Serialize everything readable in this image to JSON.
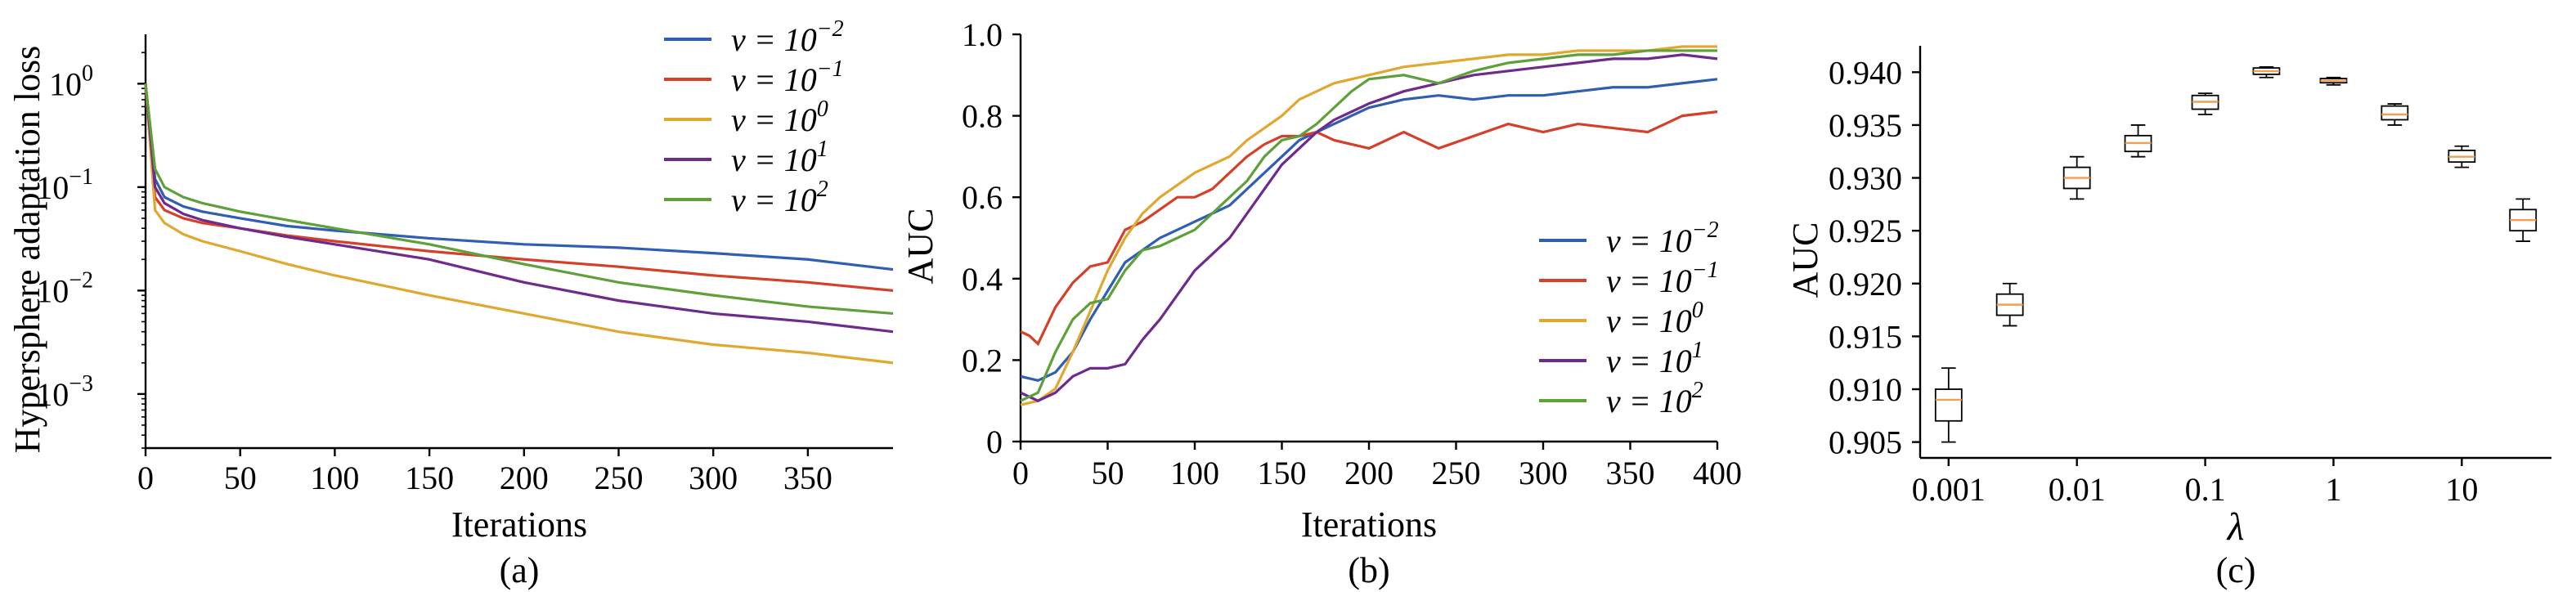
{
  "charts": [
    {
      "type": "line",
      "panel_label": "(a)",
      "xlabel": "Iterations",
      "ylabel": "Hypersphere adaptation loss",
      "yscale": "log",
      "xlim": [
        0,
        395
      ],
      "ylim": [
        0.0003,
        3
      ],
      "x_ticks": [
        0,
        50,
        100,
        150,
        200,
        250,
        300,
        350
      ],
      "x_tick_labels": [
        "0",
        "50",
        "100",
        "150",
        "200",
        "250",
        "300",
        "350"
      ],
      "y_ticks": [
        1,
        0.1,
        0.01,
        0.001
      ],
      "y_tick_base": "10",
      "y_tick_exponents": [
        "0",
        "−1",
        "−2",
        "−3"
      ],
      "legend_position": "top-right",
      "series": [
        {
          "name": "v = 10−2",
          "legend_base": "v = 10",
          "legend_exp": "−2",
          "color": "#2f5fb3",
          "x": [
            0,
            5,
            10,
            20,
            30,
            50,
            75,
            100,
            150,
            200,
            250,
            300,
            350,
            395
          ],
          "y": [
            1.0,
            0.12,
            0.08,
            0.065,
            0.058,
            0.05,
            0.042,
            0.038,
            0.032,
            0.028,
            0.026,
            0.023,
            0.02,
            0.016
          ]
        },
        {
          "name": "v = 10−1",
          "legend_base": "v = 10",
          "legend_exp": "−1",
          "color": "#d4402a",
          "x": [
            0,
            5,
            10,
            20,
            30,
            50,
            75,
            100,
            150,
            200,
            250,
            300,
            350,
            395
          ],
          "y": [
            1.0,
            0.08,
            0.06,
            0.05,
            0.045,
            0.04,
            0.034,
            0.03,
            0.024,
            0.02,
            0.017,
            0.014,
            0.012,
            0.01
          ]
        },
        {
          "name": "v = 100",
          "legend_base": "v = 10",
          "legend_exp": "0",
          "color": "#e0a82e",
          "x": [
            0,
            5,
            10,
            20,
            30,
            50,
            75,
            100,
            150,
            200,
            250,
            300,
            350,
            395
          ],
          "y": [
            1.0,
            0.06,
            0.045,
            0.035,
            0.03,
            0.024,
            0.018,
            0.014,
            0.009,
            0.006,
            0.004,
            0.003,
            0.0025,
            0.002
          ]
        },
        {
          "name": "v = 101",
          "legend_base": "v = 10",
          "legend_exp": "1",
          "color": "#6e2a8c",
          "x": [
            0,
            5,
            10,
            20,
            30,
            50,
            75,
            100,
            150,
            200,
            250,
            300,
            350,
            395
          ],
          "y": [
            1.0,
            0.1,
            0.07,
            0.055,
            0.048,
            0.04,
            0.033,
            0.028,
            0.02,
            0.012,
            0.008,
            0.006,
            0.005,
            0.004
          ]
        },
        {
          "name": "v = 102",
          "legend_base": "v = 10",
          "legend_exp": "2",
          "color": "#5fa03a",
          "x": [
            0,
            5,
            10,
            20,
            30,
            50,
            75,
            100,
            150,
            200,
            250,
            300,
            350,
            395
          ],
          "y": [
            1.0,
            0.15,
            0.1,
            0.08,
            0.07,
            0.058,
            0.048,
            0.04,
            0.028,
            0.018,
            0.012,
            0.009,
            0.007,
            0.006
          ]
        }
      ]
    },
    {
      "type": "line",
      "panel_label": "(b)",
      "xlabel": "Iterations",
      "ylabel": "AUC",
      "xlim": [
        0,
        400
      ],
      "ylim": [
        0,
        1.0
      ],
      "x_ticks": [
        0,
        50,
        100,
        150,
        200,
        250,
        300,
        350,
        400
      ],
      "x_tick_labels": [
        "0",
        "50",
        "100",
        "150",
        "200",
        "250",
        "300",
        "350",
        "400"
      ],
      "y_ticks": [
        0,
        0.2,
        0.4,
        0.6,
        0.8,
        1.0
      ],
      "y_tick_labels": [
        "0",
        "0.2",
        "0.4",
        "0.6",
        "0.8",
        "1.0"
      ],
      "legend_position": "bottom-right",
      "series": [
        {
          "name": "v = 10−2",
          "legend_base": "v = 10",
          "legend_exp": "−2",
          "color": "#2f5fb3",
          "x": [
            0,
            10,
            20,
            30,
            40,
            50,
            60,
            70,
            80,
            90,
            100,
            110,
            120,
            130,
            140,
            150,
            160,
            170,
            180,
            190,
            200,
            220,
            240,
            260,
            280,
            300,
            320,
            340,
            360,
            380,
            400
          ],
          "y": [
            0.16,
            0.15,
            0.17,
            0.22,
            0.3,
            0.37,
            0.44,
            0.47,
            0.5,
            0.52,
            0.54,
            0.56,
            0.58,
            0.62,
            0.66,
            0.7,
            0.74,
            0.76,
            0.78,
            0.8,
            0.82,
            0.84,
            0.85,
            0.84,
            0.85,
            0.85,
            0.86,
            0.87,
            0.87,
            0.88,
            0.89
          ]
        },
        {
          "name": "v = 10−1",
          "legend_base": "v = 10",
          "legend_exp": "−1",
          "color": "#d4402a",
          "x": [
            0,
            5,
            10,
            20,
            30,
            40,
            50,
            60,
            70,
            80,
            90,
            100,
            110,
            120,
            130,
            140,
            150,
            160,
            170,
            180,
            190,
            200,
            220,
            240,
            260,
            280,
            300,
            320,
            340,
            360,
            380,
            400
          ],
          "y": [
            0.27,
            0.26,
            0.24,
            0.33,
            0.39,
            0.43,
            0.44,
            0.52,
            0.54,
            0.57,
            0.6,
            0.6,
            0.62,
            0.66,
            0.7,
            0.73,
            0.75,
            0.75,
            0.76,
            0.74,
            0.73,
            0.72,
            0.76,
            0.72,
            0.75,
            0.78,
            0.76,
            0.78,
            0.77,
            0.76,
            0.8,
            0.81
          ]
        },
        {
          "name": "v = 100",
          "legend_base": "v = 10",
          "legend_exp": "0",
          "color": "#e0a82e",
          "x": [
            0,
            10,
            20,
            30,
            40,
            50,
            60,
            70,
            80,
            90,
            100,
            110,
            120,
            130,
            140,
            150,
            160,
            170,
            180,
            190,
            200,
            220,
            240,
            260,
            280,
            300,
            320,
            340,
            360,
            380,
            400
          ],
          "y": [
            0.09,
            0.1,
            0.13,
            0.22,
            0.32,
            0.42,
            0.5,
            0.56,
            0.6,
            0.63,
            0.66,
            0.68,
            0.7,
            0.74,
            0.77,
            0.8,
            0.84,
            0.86,
            0.88,
            0.89,
            0.9,
            0.92,
            0.93,
            0.94,
            0.95,
            0.95,
            0.96,
            0.96,
            0.96,
            0.97,
            0.97
          ]
        },
        {
          "name": "v = 101",
          "legend_base": "v = 10",
          "legend_exp": "1",
          "color": "#6e2a8c",
          "x": [
            0,
            10,
            20,
            30,
            40,
            50,
            60,
            70,
            80,
            90,
            100,
            110,
            120,
            130,
            140,
            150,
            160,
            170,
            180,
            190,
            200,
            220,
            240,
            260,
            280,
            300,
            320,
            340,
            360,
            380,
            400
          ],
          "y": [
            0.12,
            0.1,
            0.12,
            0.16,
            0.18,
            0.18,
            0.19,
            0.25,
            0.3,
            0.36,
            0.42,
            0.46,
            0.5,
            0.56,
            0.62,
            0.68,
            0.72,
            0.76,
            0.79,
            0.81,
            0.83,
            0.86,
            0.88,
            0.9,
            0.91,
            0.92,
            0.93,
            0.94,
            0.94,
            0.95,
            0.94
          ]
        },
        {
          "name": "v = 102",
          "legend_base": "v = 10",
          "legend_exp": "2",
          "color": "#5fa03a",
          "x": [
            0,
            10,
            20,
            30,
            40,
            50,
            60,
            70,
            80,
            90,
            100,
            110,
            120,
            130,
            140,
            150,
            160,
            170,
            180,
            190,
            200,
            220,
            240,
            260,
            280,
            300,
            320,
            340,
            360,
            380,
            400
          ],
          "y": [
            0.1,
            0.12,
            0.22,
            0.3,
            0.34,
            0.35,
            0.42,
            0.47,
            0.48,
            0.5,
            0.52,
            0.56,
            0.6,
            0.64,
            0.7,
            0.74,
            0.75,
            0.78,
            0.82,
            0.86,
            0.89,
            0.9,
            0.88,
            0.91,
            0.93,
            0.94,
            0.95,
            0.95,
            0.96,
            0.96,
            0.96
          ]
        }
      ]
    },
    {
      "type": "box",
      "panel_label": "(c)",
      "xlabel": "λ",
      "ylabel": "AUC",
      "xscale": "log",
      "xlim": [
        0.0006,
        50
      ],
      "ylim": [
        0.9035,
        0.9425
      ],
      "x_ticks": [
        0.001,
        0.01,
        0.1,
        1,
        10
      ],
      "x_tick_labels": [
        "0.001",
        "0.01",
        "0.1",
        "1",
        "10"
      ],
      "y_ticks": [
        0.905,
        0.91,
        0.915,
        0.92,
        0.925,
        0.93,
        0.935,
        0.94
      ],
      "y_tick_labels": [
        "0.905",
        "0.910",
        "0.915",
        "0.920",
        "0.925",
        "0.930",
        "0.935",
        "0.940"
      ],
      "median_color": "#f0a050",
      "boxes": [
        {
          "lambda": 0.001,
          "min": 0.905,
          "q1": 0.907,
          "median": 0.909,
          "q3": 0.91,
          "max": 0.912
        },
        {
          "lambda": 0.003,
          "min": 0.916,
          "q1": 0.917,
          "median": 0.918,
          "q3": 0.919,
          "max": 0.92
        },
        {
          "lambda": 0.01,
          "min": 0.928,
          "q1": 0.929,
          "median": 0.93,
          "q3": 0.931,
          "max": 0.932
        },
        {
          "lambda": 0.03,
          "min": 0.932,
          "q1": 0.9325,
          "median": 0.9333,
          "q3": 0.934,
          "max": 0.935
        },
        {
          "lambda": 0.1,
          "min": 0.936,
          "q1": 0.9365,
          "median": 0.9372,
          "q3": 0.9378,
          "max": 0.938
        },
        {
          "lambda": 0.3,
          "min": 0.9395,
          "q1": 0.9398,
          "median": 0.9401,
          "q3": 0.9404,
          "max": 0.9405
        },
        {
          "lambda": 1,
          "min": 0.9388,
          "q1": 0.939,
          "median": 0.9392,
          "q3": 0.9394,
          "max": 0.9395
        },
        {
          "lambda": 3,
          "min": 0.935,
          "q1": 0.9355,
          "median": 0.936,
          "q3": 0.9368,
          "max": 0.937
        },
        {
          "lambda": 10,
          "min": 0.931,
          "q1": 0.9315,
          "median": 0.932,
          "q3": 0.9326,
          "max": 0.933
        },
        {
          "lambda": 30,
          "min": 0.924,
          "q1": 0.925,
          "median": 0.926,
          "q3": 0.927,
          "max": 0.928
        }
      ]
    }
  ]
}
